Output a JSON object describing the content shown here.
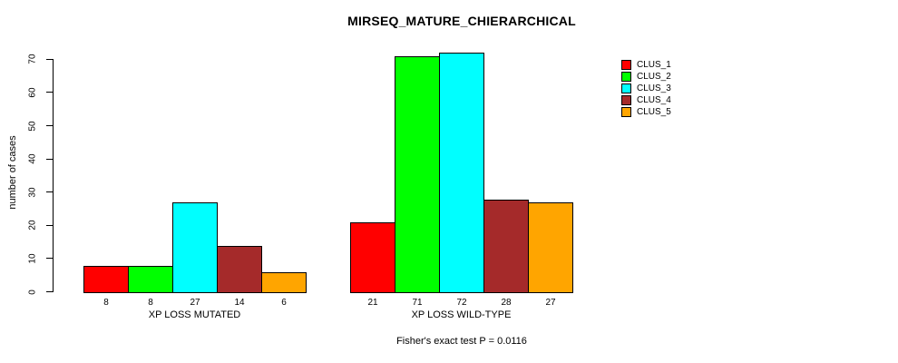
{
  "title": "MIRSEQ_MATURE_CHIERARCHICAL",
  "y_axis": {
    "label": "number of cases",
    "ticks": [
      0,
      10,
      20,
      30,
      40,
      50,
      60,
      70
    ]
  },
  "footer": "Fisher's exact test P = 0.0116",
  "legend": {
    "items": [
      {
        "label": "CLUS_1",
        "color": "#FF0000"
      },
      {
        "label": "CLUS_2",
        "color": "#00FF00"
      },
      {
        "label": "CLUS_3",
        "color": "#00FFFF"
      },
      {
        "label": "CLUS_4",
        "color": "#A52A2A"
      },
      {
        "label": "CLUS_5",
        "color": "#FFA500"
      }
    ]
  },
  "chart_data": {
    "type": "bar",
    "title": "MIRSEQ_MATURE_CHIERARCHICAL",
    "xlabel": "",
    "ylabel": "number of cases",
    "ylim": [
      0,
      72
    ],
    "yticks": [
      0,
      10,
      20,
      30,
      40,
      50,
      60,
      70
    ],
    "grid": false,
    "legend_position": "top-right-outside",
    "categories": [
      "XP LOSS MUTATED",
      "XP LOSS WILD-TYPE"
    ],
    "series": [
      {
        "name": "CLUS_1",
        "color": "#FF0000",
        "values": [
          8,
          21
        ]
      },
      {
        "name": "CLUS_2",
        "color": "#00FF00",
        "values": [
          8,
          71
        ]
      },
      {
        "name": "CLUS_3",
        "color": "#00FFFF",
        "values": [
          27,
          72
        ]
      },
      {
        "name": "CLUS_4",
        "color": "#A52A2A",
        "values": [
          14,
          28
        ]
      },
      {
        "name": "CLUS_5",
        "color": "#FFA500",
        "values": [
          6,
          27
        ]
      }
    ],
    "bar_value_labels": {
      "XP LOSS MUTATED": [
        8,
        8,
        27,
        14,
        6
      ],
      "XP LOSS WILD-TYPE": [
        21,
        71,
        72,
        28,
        27
      ]
    },
    "annotation": "Fisher's exact test P = 0.0116"
  }
}
